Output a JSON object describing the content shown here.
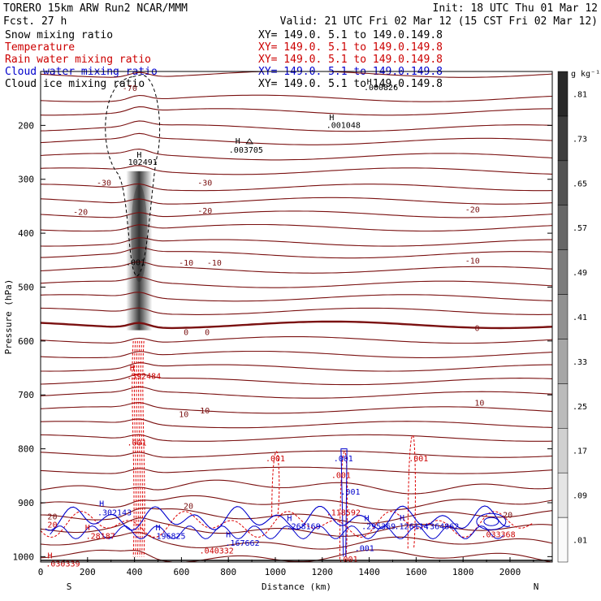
{
  "header": {
    "left1": "TORERO  15km ARW   Run2    NCAR/MMM",
    "left2": "Fcst.   27 h",
    "right1": "Init: 18 UTC Thu 01 Mar 12",
    "right2": "Valid: 21 UTC Fri 02 Mar 12 (15 CST Fri 02 Mar 12)"
  },
  "legend": [
    {
      "name": "Snow mixing ratio",
      "color": "#000000",
      "xy": "XY= 149.0.  5.1 to 149.0.149.8"
    },
    {
      "name": "Temperature",
      "color": "#cc0000",
      "xy": "XY= 149.0.  5.1 to 149.0.149.8"
    },
    {
      "name": "Rain water mixing ratio",
      "color": "#cc0000",
      "xy": "XY= 149.0.  5.1 to 149.0.149.8"
    },
    {
      "name": "Cloud water mixing ratio",
      "color": "#0000cc",
      "xy": "XY= 149.0.  5.1 to 149.0.149.8"
    },
    {
      "name": "Cloud ice mixing ratio",
      "color": "#000000",
      "xy": "XY= 149.0.  5.1 to 149.0.149.8"
    }
  ],
  "chart_data": {
    "type": "cross-section",
    "xlabel": "Distance (km)",
    "ylabel": "Pressure (hPa)",
    "xlim": [
      0,
      2180
    ],
    "ylim": [
      1010,
      100
    ],
    "xticks": [
      0,
      200,
      400,
      600,
      800,
      1000,
      1200,
      1400,
      1600,
      1800,
      2000
    ],
    "yticks": [
      200,
      300,
      400,
      500,
      600,
      700,
      800,
      900,
      1000
    ],
    "endpoints": {
      "left": "S",
      "right": "N"
    },
    "colorbar": {
      "unit": "g kg⁻¹",
      "ticks": [
        ".01",
        ".09",
        ".17",
        ".25",
        ".33",
        ".41",
        ".49",
        ".57",
        ".65",
        ".73",
        ".81"
      ]
    },
    "snow_column": {
      "x_km": 420,
      "p_top": 285,
      "p_bottom": 580,
      "peak_p": 400
    },
    "isotherm_labels": [
      {
        "text": "-70",
        "x": 380,
        "p": 130
      },
      {
        "text": "-30",
        "x": 270,
        "p": 306
      },
      {
        "text": "-30",
        "x": 700,
        "p": 306
      },
      {
        "text": "-20",
        "x": 170,
        "p": 360
      },
      {
        "text": "-20",
        "x": 700,
        "p": 358
      },
      {
        "text": "-20",
        "x": 1840,
        "p": 355
      },
      {
        "text": "-10",
        "x": 620,
        "p": 454
      },
      {
        "text": "-10",
        "x": 740,
        "p": 454
      },
      {
        "text": "-10",
        "x": 1840,
        "p": 450
      },
      {
        "text": "0",
        "x": 620,
        "p": 583
      },
      {
        "text": "0",
        "x": 710,
        "p": 583
      },
      {
        "text": "0",
        "x": 1860,
        "p": 575
      },
      {
        "text": "10",
        "x": 610,
        "p": 735
      },
      {
        "text": "10",
        "x": 700,
        "p": 728
      },
      {
        "text": "10",
        "x": 1870,
        "p": 714
      },
      {
        "text": "20",
        "x": 630,
        "p": 905
      },
      {
        "text": "20",
        "x": 1990,
        "p": 922
      },
      {
        "text": "20",
        "x": 50,
        "p": 925
      }
    ],
    "extrema": [
      {
        "text": "H",
        "x": 420,
        "p": 254,
        "color": "#000000"
      },
      {
        "text": "102491",
        "x": 435,
        "p": 267,
        "color": "#000000"
      },
      {
        "text": ".001",
        "x": 405,
        "p": 453,
        "color": "#000000"
      },
      {
        "text": "H",
        "x": 840,
        "p": 228,
        "color": "#000000"
      },
      {
        "text": ".003705",
        "x": 875,
        "p": 245,
        "color": "#000000"
      },
      {
        "text": "H",
        "x": 1240,
        "p": 184,
        "color": "#000000"
      },
      {
        "text": ".001048",
        "x": 1290,
        "p": 199,
        "color": "#000000"
      },
      {
        "text": "H",
        "x": 1400,
        "p": 118,
        "color": "#000000"
      },
      {
        "text": ".000826",
        "x": 1450,
        "p": 129,
        "color": "#000000"
      },
      {
        "text": "H",
        "x": 390,
        "p": 649,
        "color": "#cc0000"
      },
      {
        "text": ".392484",
        "x": 440,
        "p": 664,
        "color": "#cc0000"
      },
      {
        "text": ".001",
        "x": 410,
        "p": 788,
        "color": "#cc0000"
      },
      {
        "text": ".001",
        "x": 1000,
        "p": 817,
        "color": "#cc0000"
      },
      {
        "text": ".001",
        "x": 1290,
        "p": 817,
        "color": "#0000cc"
      },
      {
        "text": ".001",
        "x": 1280,
        "p": 848,
        "color": "#cc0000"
      },
      {
        "text": ".001",
        "x": 1320,
        "p": 879,
        "color": "#0000cc"
      },
      {
        "text": ".001",
        "x": 1610,
        "p": 817,
        "color": "#cc0000"
      },
      {
        "text": "H",
        "x": 260,
        "p": 901,
        "color": "#0000cc"
      },
      {
        "text": ".302143",
        "x": 315,
        "p": 917,
        "color": "#0000cc"
      },
      {
        "text": ".118592",
        "x": 1290,
        "p": 917,
        "color": "#cc0000"
      },
      {
        "text": "H",
        "x": 200,
        "p": 945,
        "color": "#cc0000"
      },
      {
        "text": ".28187",
        "x": 255,
        "p": 961,
        "color": "#cc0000"
      },
      {
        "text": "H",
        "x": 500,
        "p": 945,
        "color": "#0000cc"
      },
      {
        "text": ".196825",
        "x": 545,
        "p": 961,
        "color": "#0000cc"
      },
      {
        "text": "H",
        "x": 800,
        "p": 958,
        "color": "#0000cc"
      },
      {
        "text": ".167662",
        "x": 860,
        "p": 974,
        "color": "#0000cc"
      },
      {
        "text": ".040332",
        "x": 750,
        "p": 988,
        "color": "#cc0000"
      },
      {
        "text": "H",
        "x": 1060,
        "p": 928,
        "color": "#0000cc"
      },
      {
        "text": ".268169",
        "x": 1120,
        "p": 943,
        "color": "#0000cc"
      },
      {
        "text": "H",
        "x": 1390,
        "p": 928,
        "color": "#0000cc"
      },
      {
        "text": ".295369",
        "x": 1440,
        "p": 943,
        "color": "#0000cc"
      },
      {
        "text": "H",
        "x": 1540,
        "p": 927,
        "color": "#0000cc"
      },
      {
        "text": ".126114",
        "x": 1580,
        "p": 943,
        "color": "#0000cc"
      },
      {
        "text": ".364862",
        "x": 1710,
        "p": 943,
        "color": "#0000cc"
      },
      {
        "text": ".033368",
        "x": 1950,
        "p": 958,
        "color": "#cc0000"
      },
      {
        "text": "20",
        "x": 50,
        "p": 940,
        "color": "#cc0000"
      },
      {
        "text": ".001",
        "x": 1380,
        "p": 984,
        "color": "#0000cc"
      },
      {
        "text": ".001",
        "x": 1310,
        "p": 1004,
        "color": "#cc0000"
      },
      {
        "text": "H",
        "x": 40,
        "p": 997,
        "color": "#cc0000"
      },
      {
        "text": ".030339",
        "x": 95,
        "p": 1012,
        "color": "#cc0000"
      }
    ]
  }
}
